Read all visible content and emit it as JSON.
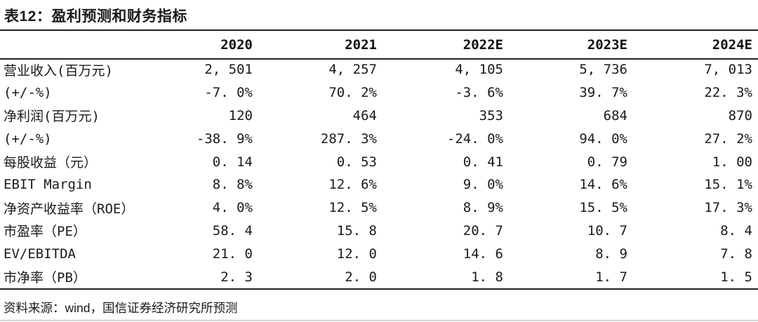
{
  "table": {
    "title": "表12：盈利预测和财务指标",
    "columns": [
      "",
      "2020",
      "2021",
      "2022E",
      "2023E",
      "2024E"
    ],
    "rows": [
      {
        "label": "营业收入(百万元)",
        "values": [
          "2, 501",
          "4, 257",
          "4, 105",
          "5, 736",
          "7, 013"
        ]
      },
      {
        "label": "(+/-%)",
        "values": [
          "-7. 0%",
          "70. 2%",
          "-3. 6%",
          "39. 7%",
          "22. 3%"
        ]
      },
      {
        "label": "净利润(百万元)",
        "values": [
          "120",
          "464",
          "353",
          "684",
          "870"
        ]
      },
      {
        "label": "(+/-%)",
        "values": [
          "-38. 9%",
          "287. 3%",
          "-24. 0%",
          "94. 0%",
          "27. 2%"
        ]
      },
      {
        "label": "每股收益（元）",
        "values": [
          "0. 14",
          "0. 53",
          "0. 41",
          "0. 79",
          "1. 00"
        ]
      },
      {
        "label": "EBIT  Margin",
        "values": [
          "8. 8%",
          "12. 6%",
          "9. 0%",
          "14. 6%",
          "15. 1%"
        ]
      },
      {
        "label": "净资产收益率（ROE）",
        "values": [
          "4. 0%",
          "12. 5%",
          "8. 9%",
          "15. 5%",
          "17. 3%"
        ]
      },
      {
        "label": "市盈率（PE）",
        "values": [
          "58. 4",
          "15. 8",
          "20. 7",
          "10. 7",
          "8. 4"
        ]
      },
      {
        "label": "EV/EBITDA",
        "values": [
          "21. 0",
          "12. 0",
          "14. 6",
          "8. 9",
          "7. 8"
        ]
      },
      {
        "label": "市净率（PB）",
        "values": [
          "2. 3",
          "2. 0",
          "1. 8",
          "1. 7",
          "1. 5"
        ]
      }
    ],
    "source_note": "资料来源：wind，国信证券经济研究所预测"
  },
  "colors": {
    "text": "#1a1a1a",
    "rule": "#222222",
    "bottom_hairline": "#b0b0b0",
    "background": "#ffffff"
  }
}
